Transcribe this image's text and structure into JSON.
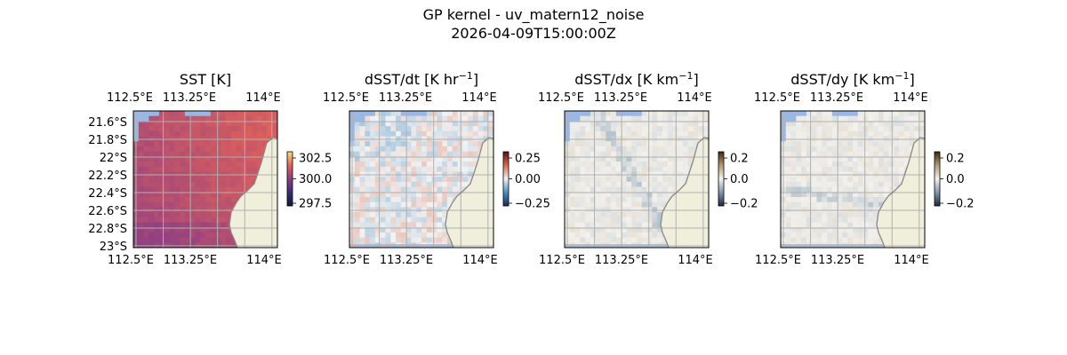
{
  "figure": {
    "title": "GP kernel - uv_matern12_noise",
    "timestamp": "2026-04-09T15:00:00Z"
  },
  "colors": {
    "land": "#efefdb",
    "missing": "#9bb8e5",
    "coast": "#888888",
    "grid": "#b0b0b0"
  },
  "panels": [
    {
      "id": "sst",
      "title_main": "SST [K]",
      "title_sup": "",
      "title_end": "",
      "colormap": "thermal",
      "colorbar_ticks": [
        "302.5",
        "300.0",
        "297.5"
      ],
      "show_lat_labels": true
    },
    {
      "id": "dsst-dt",
      "title_main": "dSST/dt [K hr",
      "title_sup": "−1",
      "title_end": "]",
      "colormap": "balance",
      "colorbar_ticks": [
        "0.25",
        "0.00",
        "−0.25"
      ],
      "show_lat_labels": false
    },
    {
      "id": "dsst-dx",
      "title_main": "dSST/dx [K km",
      "title_sup": "−1",
      "title_end": "]",
      "colormap": "diff",
      "colorbar_ticks": [
        "0.2",
        "0.0",
        "−0.2"
      ],
      "show_lat_labels": false
    },
    {
      "id": "dsst-dy",
      "title_main": "dSST/dy [K km",
      "title_sup": "−1",
      "title_end": "]",
      "colormap": "diff",
      "colorbar_ticks": [
        "0.2",
        "0.0",
        "−0.2"
      ],
      "show_lat_labels": false
    }
  ],
  "lon_labels": [
    "112.5°E",
    "113.25°E",
    "114°E"
  ],
  "lat_labels": [
    "21.6°S",
    "21.8°S",
    "22°S",
    "22.2°S",
    "22.4°S",
    "22.6°S",
    "22.8°S",
    "23°S"
  ]
}
